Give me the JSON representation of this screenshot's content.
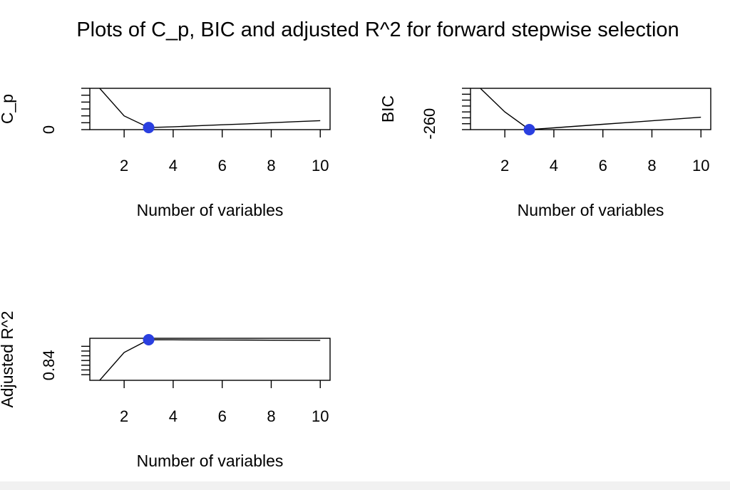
{
  "figure": {
    "title": "Plots of C_p, BIC and adjusted R^2 for forward stepwise selection",
    "highlight_color": "#2a3fe0",
    "line_color": "#000000"
  },
  "chart_data": [
    {
      "type": "line",
      "title": "",
      "xlabel": "Number of variables",
      "ylabel": "C_p",
      "x": [
        1,
        2,
        3,
        4,
        5,
        6,
        7,
        8,
        9,
        10
      ],
      "y": [
        30,
        10,
        1.5,
        2.0,
        2.8,
        3.5,
        4.2,
        5.0,
        5.8,
        6.5
      ],
      "xticks": [
        2,
        4,
        6,
        8,
        10
      ],
      "yticks": [
        0,
        5,
        10,
        15,
        20,
        25,
        30
      ],
      "ytick_labels": [
        "0",
        "",
        "",
        "",
        "",
        "",
        ""
      ],
      "xlim": [
        0.6,
        10.4
      ],
      "ylim": [
        0,
        30
      ],
      "highlight": {
        "x": 3,
        "y": 1.5
      },
      "grid": false,
      "legend": "none"
    },
    {
      "type": "line",
      "title": "",
      "xlabel": "Number of variables",
      "ylabel": "BIC",
      "x": [
        1,
        2,
        3,
        4,
        5,
        6,
        7,
        8,
        9,
        10
      ],
      "y": [
        -200,
        -240,
        -270,
        -267,
        -264,
        -261,
        -258,
        -255,
        -252,
        -249
      ],
      "xticks": [
        2,
        4,
        6,
        8,
        10
      ],
      "yticks": [
        -270,
        -260,
        -250,
        -240,
        -230,
        -220,
        -210,
        -200
      ],
      "ytick_labels": [
        "",
        "-260",
        "",
        "",
        "",
        "",
        "",
        ""
      ],
      "xlim": [
        0.6,
        10.4
      ],
      "ylim": [
        -270,
        -200
      ],
      "highlight": {
        "x": 3,
        "y": -270
      },
      "grid": false,
      "legend": "none"
    },
    {
      "type": "line",
      "title": "",
      "xlabel": "Number of variables",
      "ylabel": "Adjusted R^2",
      "x": [
        1,
        2,
        3,
        4,
        5,
        6,
        7,
        8,
        9,
        10
      ],
      "y": [
        0.824,
        0.8535,
        0.867,
        0.8669,
        0.8668,
        0.8667,
        0.8666,
        0.8665,
        0.8664,
        0.8663
      ],
      "xticks": [
        2,
        4,
        6,
        8,
        10
      ],
      "yticks": [
        0.83,
        0.835,
        0.84,
        0.845,
        0.85,
        0.855,
        0.86
      ],
      "ytick_labels": [
        "",
        "",
        "0.84",
        "",
        "",
        "",
        ""
      ],
      "xlim": [
        0.6,
        10.4
      ],
      "ylim": [
        0.824,
        0.8685
      ],
      "highlight": {
        "x": 3,
        "y": 0.867
      },
      "grid": false,
      "legend": "none"
    }
  ]
}
